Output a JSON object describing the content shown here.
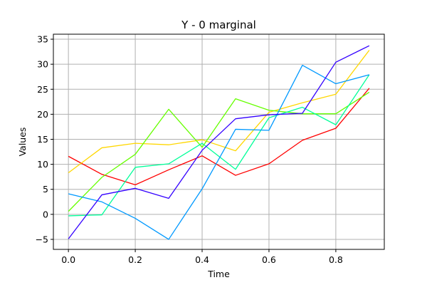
{
  "chart_data": {
    "type": "line",
    "title": "Y - 0 marginal",
    "xlabel": "Time",
    "ylabel": "Values",
    "xlim": [
      -0.045,
      0.945
    ],
    "ylim": [
      -7.0,
      36.0
    ],
    "xticks": [
      0.0,
      0.2,
      0.4,
      0.6,
      0.8
    ],
    "xtick_labels": [
      "0.0",
      "0.2",
      "0.4",
      "0.6",
      "0.8"
    ],
    "yticks": [
      -5,
      0,
      5,
      10,
      15,
      20,
      25,
      30,
      35
    ],
    "ytick_labels": [
      "−5",
      "0",
      "5",
      "10",
      "15",
      "20",
      "25",
      "30",
      "35"
    ],
    "grid": true,
    "legend": "none",
    "x": [
      0.0,
      0.1,
      0.2,
      0.3,
      0.4,
      0.5,
      0.6,
      0.7,
      0.8,
      0.9
    ],
    "series": [
      {
        "color": "#ff0000",
        "values": [
          11.6,
          8.0,
          5.9,
          8.9,
          11.7,
          7.8,
          10.1,
          14.8,
          17.2,
          25.2
        ]
      },
      {
        "color": "#ffd700",
        "values": [
          8.3,
          13.3,
          14.2,
          13.9,
          14.9,
          12.7,
          20.4,
          22.3,
          24.0,
          32.8
        ]
      },
      {
        "color": "#66ff00",
        "values": [
          0.6,
          7.4,
          12.0,
          21.0,
          13.4,
          23.1,
          20.8,
          20.1,
          20.1,
          24.4
        ]
      },
      {
        "color": "#00ff99",
        "values": [
          -0.3,
          -0.1,
          9.4,
          10.1,
          14.2,
          9.0,
          19.3,
          21.4,
          17.9,
          27.9
        ]
      },
      {
        "color": "#0099ff",
        "values": [
          4.1,
          2.5,
          -0.8,
          -5.0,
          5.1,
          17.0,
          16.8,
          29.8,
          26.1,
          27.9
        ]
      },
      {
        "color": "#3300ff",
        "values": [
          -4.9,
          3.9,
          5.2,
          3.2,
          12.8,
          19.1,
          19.9,
          20.2,
          30.4,
          33.7
        ]
      }
    ]
  }
}
